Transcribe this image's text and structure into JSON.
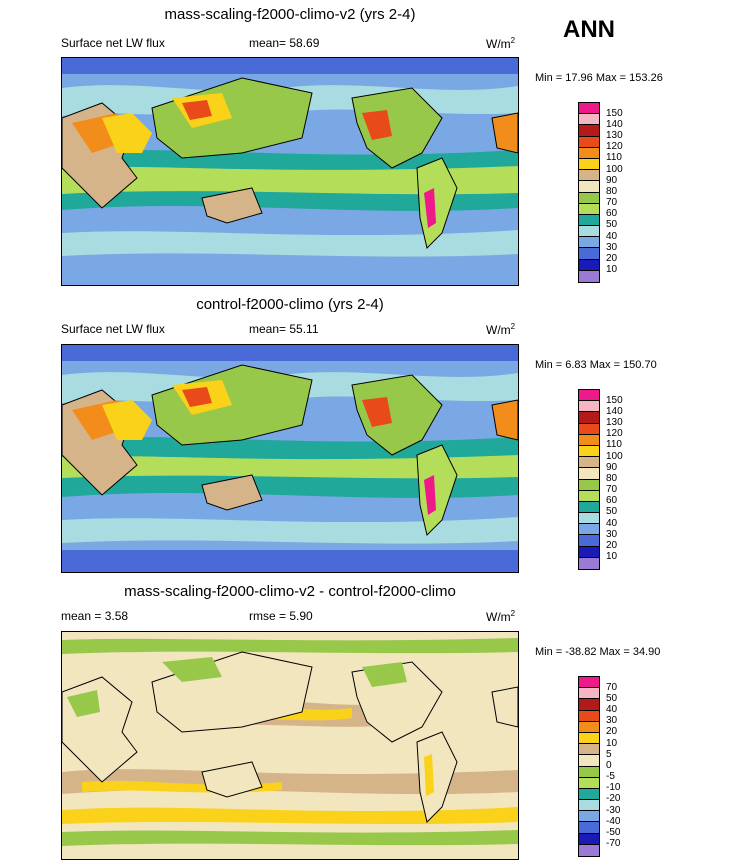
{
  "season": "ANN",
  "panels": [
    {
      "title": "mass-scaling-f2000-climo-v2 (yrs 2-4)",
      "left_label": "Surface net LW flux",
      "center_label": "mean=  58.69",
      "units_base": "W/m",
      "units_exp": "2",
      "minmax": "Min =  17.96 Max = 153.26",
      "levels": [
        "150",
        "140",
        "130",
        "120",
        "110",
        "100",
        "90",
        "80",
        "70",
        "60",
        "50",
        "40",
        "30",
        "20",
        "10"
      ],
      "colors": [
        "#ee1a8c",
        "#f4b6c2",
        "#b31a1a",
        "#e84a1a",
        "#f28c1a",
        "#fbd21a",
        "#d6b48a",
        "#f2e6bf",
        "#98c84a",
        "#b4de5a",
        "#20a89a",
        "#a8dce0",
        "#7aa8e4",
        "#4a6ad8",
        "#1a1ab8",
        "#9a7ad6"
      ]
    },
    {
      "title": "control-f2000-climo (yrs 2-4)",
      "left_label": "Surface net LW flux",
      "center_label": "mean=  55.11",
      "units_base": "W/m",
      "units_exp": "2",
      "minmax": "Min =   6.83 Max = 150.70",
      "levels": [
        "150",
        "140",
        "130",
        "120",
        "110",
        "100",
        "90",
        "80",
        "70",
        "60",
        "50",
        "40",
        "30",
        "20",
        "10"
      ],
      "colors": [
        "#ee1a8c",
        "#f4b6c2",
        "#b31a1a",
        "#e84a1a",
        "#f28c1a",
        "#fbd21a",
        "#d6b48a",
        "#f2e6bf",
        "#98c84a",
        "#b4de5a",
        "#20a89a",
        "#a8dce0",
        "#7aa8e4",
        "#4a6ad8",
        "#1a1ab8",
        "#9a7ad6"
      ]
    },
    {
      "title": "mass-scaling-f2000-climo-v2 - control-f2000-climo",
      "left_label": "mean =   3.58",
      "center_label": "rmse =   5.90",
      "units_base": "W/m",
      "units_exp": "2",
      "minmax": "Min = -38.82 Max =  34.90",
      "levels": [
        "70",
        "50",
        "40",
        "30",
        "20",
        "10",
        "5",
        "0",
        "-5",
        "-10",
        "-20",
        "-30",
        "-40",
        "-50",
        "-70"
      ],
      "colors": [
        "#ee1a8c",
        "#f4b6c2",
        "#b31a1a",
        "#e84a1a",
        "#f28c1a",
        "#fbd21a",
        "#d6b48a",
        "#f2e6bf",
        "#98c84a",
        "#b4de5a",
        "#20a89a",
        "#a8dce0",
        "#7aa8e4",
        "#4a6ad8",
        "#1a1ab8",
        "#9a7ad6"
      ]
    }
  ],
  "chart_data": [
    {
      "type": "heatmap",
      "title": "mass-scaling-f2000-climo-v2 (yrs 2-4)",
      "variable": "Surface net LW flux",
      "units": "W/m2",
      "mean": 58.69,
      "min": 17.96,
      "max": 153.26,
      "contour_levels": [
        10,
        20,
        30,
        40,
        50,
        60,
        70,
        80,
        90,
        100,
        110,
        120,
        130,
        140,
        150
      ]
    },
    {
      "type": "heatmap",
      "title": "control-f2000-climo (yrs 2-4)",
      "variable": "Surface net LW flux",
      "units": "W/m2",
      "mean": 55.11,
      "min": 6.83,
      "max": 150.7,
      "contour_levels": [
        10,
        20,
        30,
        40,
        50,
        60,
        70,
        80,
        90,
        100,
        110,
        120,
        130,
        140,
        150
      ]
    },
    {
      "type": "heatmap",
      "title": "mass-scaling-f2000-climo-v2 - control-f2000-climo",
      "units": "W/m2",
      "mean": 3.58,
      "rmse": 5.9,
      "min": -38.82,
      "max": 34.9,
      "contour_levels": [
        -70,
        -50,
        -40,
        -30,
        -20,
        -10,
        -5,
        0,
        5,
        10,
        20,
        30,
        40,
        50,
        70
      ]
    }
  ]
}
